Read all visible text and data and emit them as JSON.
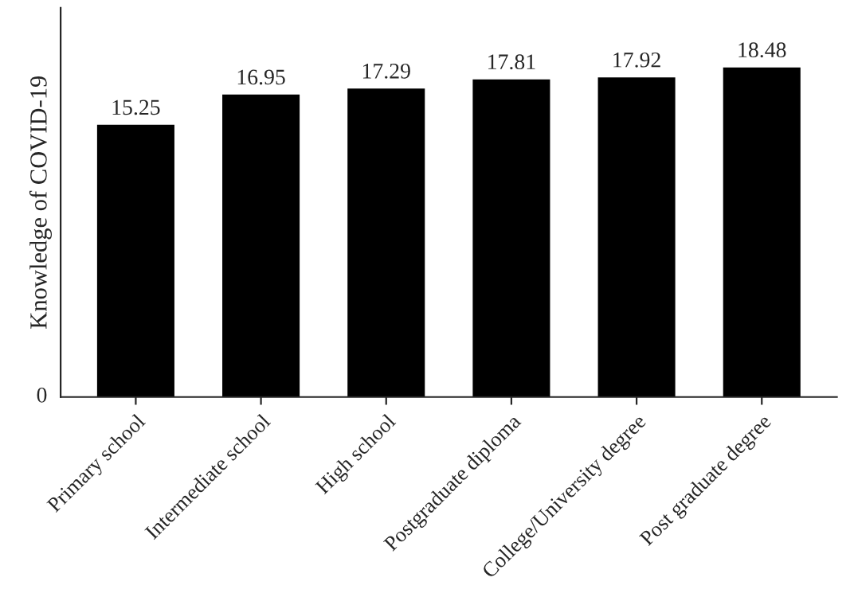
{
  "chart_data": {
    "type": "bar",
    "ylabel": "Knowledge of COVID-19",
    "categories": [
      "Primary school",
      "Intermediate school",
      "High school",
      "Postgraduate diploma",
      "College/University degree",
      "Post graduate degree"
    ],
    "values": [
      15.25,
      16.95,
      17.29,
      17.81,
      17.92,
      18.48
    ],
    "color": "#000000",
    "data_labels": true,
    "annotations": [
      "0"
    ]
  }
}
